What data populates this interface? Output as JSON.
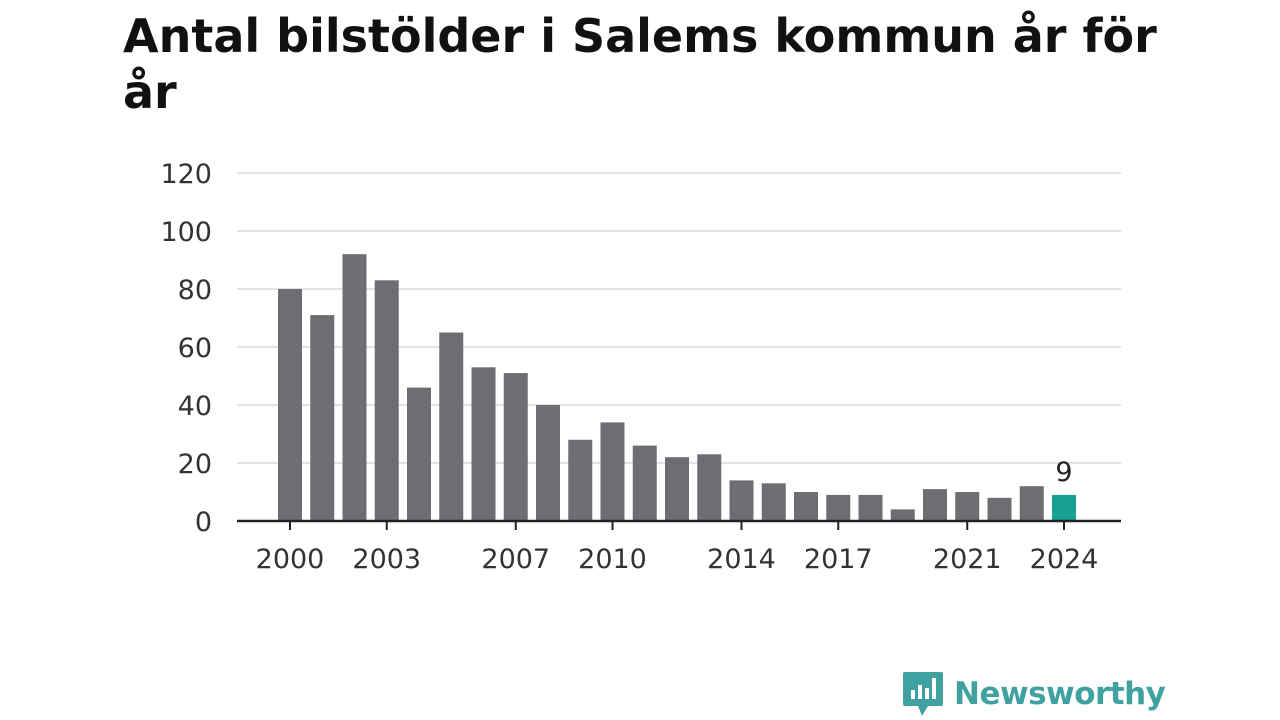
{
  "chart_data": {
    "type": "bar",
    "title": "Antal bilstölder i Salems kommun år för år",
    "xlabel": "",
    "ylabel": "",
    "ylim": [
      0,
      120
    ],
    "yticks": [
      0,
      20,
      40,
      60,
      80,
      100,
      120
    ],
    "categories": [
      "2000",
      "2001",
      "2002",
      "2003",
      "2004",
      "2005",
      "2006",
      "2007",
      "2008",
      "2009",
      "2010",
      "2011",
      "2012",
      "2013",
      "2014",
      "2015",
      "2016",
      "2017",
      "2018",
      "2019",
      "2020",
      "2021",
      "2022",
      "2023",
      "2024"
    ],
    "xtick_labels": [
      "2000",
      "2003",
      "2007",
      "2010",
      "2014",
      "2017",
      "2021",
      "2024"
    ],
    "values": [
      80,
      71,
      92,
      83,
      46,
      65,
      53,
      51,
      40,
      28,
      34,
      26,
      22,
      23,
      14,
      13,
      10,
      9,
      9,
      4,
      11,
      10,
      8,
      12,
      9
    ],
    "highlight": {
      "category": "2024",
      "label": "9"
    },
    "grid": true,
    "legend": "none",
    "colors": {
      "bar": "#6e6d72",
      "highlight": "#16a192",
      "grid": "#d9d9d9",
      "axis": "#222222",
      "text": "#333333"
    }
  },
  "brand": {
    "name": "Newsworthy",
    "icon": "newsworthy-logo-icon",
    "color": "#3fa2a0"
  }
}
